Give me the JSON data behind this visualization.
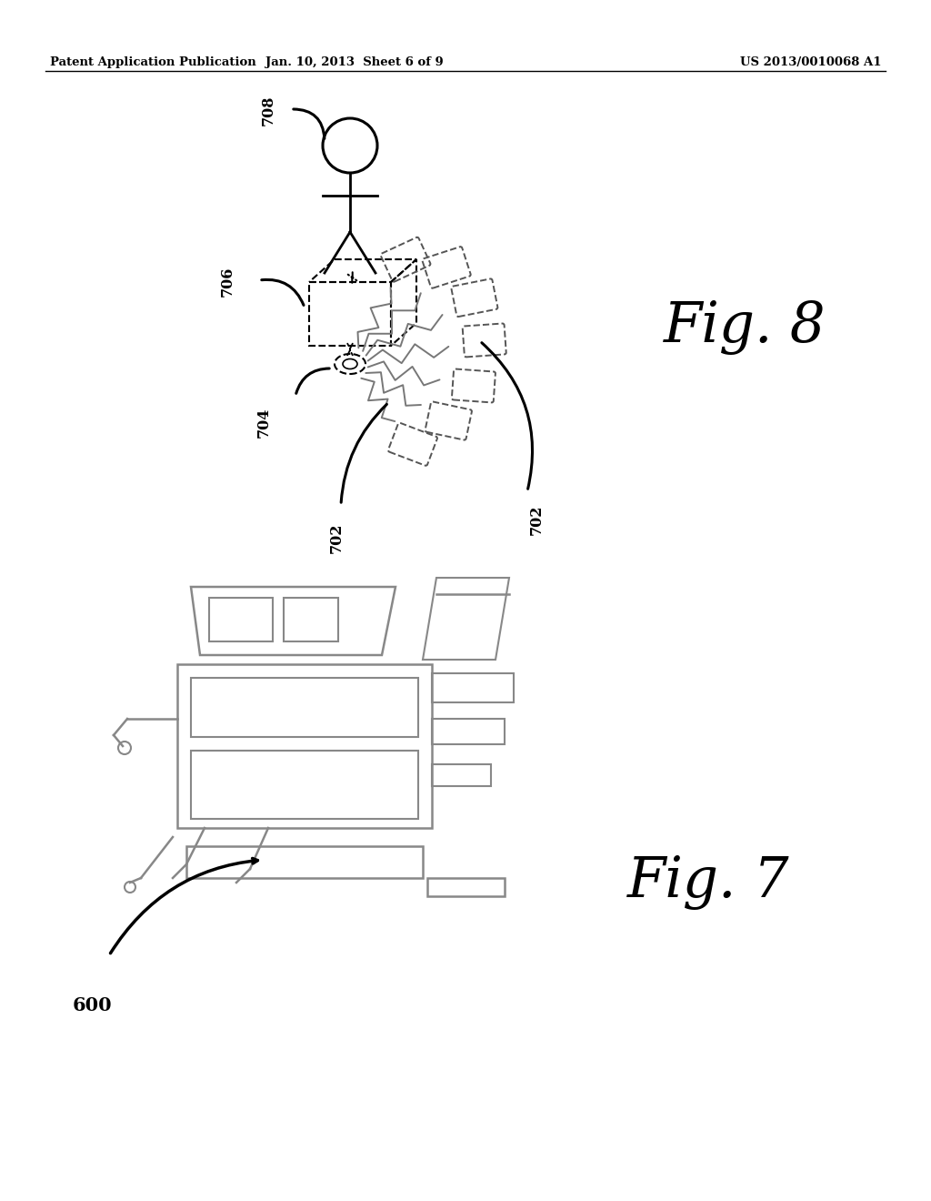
{
  "bg_color": "#ffffff",
  "header_left": "Patent Application Publication",
  "header_mid": "Jan. 10, 2013  Sheet 6 of 9",
  "header_right": "US 2013/0010068 A1",
  "fig7_label": "Fig. 7",
  "fig8_label": "Fig. 8",
  "label_600": "600",
  "label_702a": "702",
  "label_702b": "702",
  "label_704": "704",
  "label_706": "706",
  "label_708": "708",
  "line_color": "#555555",
  "tag_color": "#555555"
}
